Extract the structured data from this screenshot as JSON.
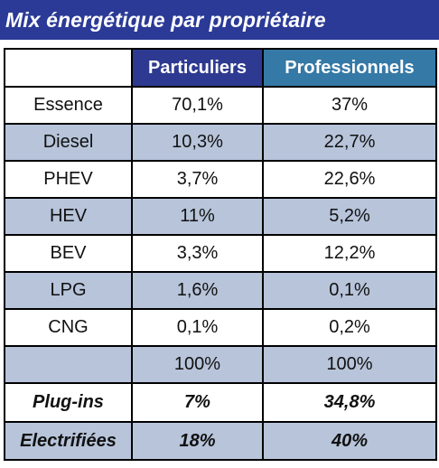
{
  "title": "Mix énergétique par propriétaire",
  "colors": {
    "title_bg": "#2b3a96",
    "header_particuliers_bg": "#2e3a91",
    "header_professionnels_bg": "#3579a6",
    "shaded_row_bg": "#b7c4da"
  },
  "chart_data": {
    "type": "table",
    "title": "Mix énergétique par propriétaire",
    "columns": [
      "",
      "Particuliers",
      "Professionnels"
    ],
    "rows": [
      {
        "label": "Essence",
        "particuliers": "70,1%",
        "professionnels": "37%"
      },
      {
        "label": "Diesel",
        "particuliers": "10,3%",
        "professionnels": "22,7%"
      },
      {
        "label": "PHEV",
        "particuliers": "3,7%",
        "professionnels": "22,6%"
      },
      {
        "label": "HEV",
        "particuliers": "11%",
        "professionnels": "5,2%"
      },
      {
        "label": "BEV",
        "particuliers": "3,3%",
        "professionnels": "12,2%"
      },
      {
        "label": "LPG",
        "particuliers": "1,6%",
        "professionnels": "0,1%"
      },
      {
        "label": "CNG",
        "particuliers": "0,1%",
        "professionnels": "0,2%"
      },
      {
        "label": "",
        "particuliers": "100%",
        "professionnels": "100%"
      },
      {
        "label": "Plug-ins",
        "particuliers": "7%",
        "professionnels": "34,8%"
      },
      {
        "label": "Electrifiées",
        "particuliers": "18%",
        "professionnels": "40%"
      }
    ]
  }
}
